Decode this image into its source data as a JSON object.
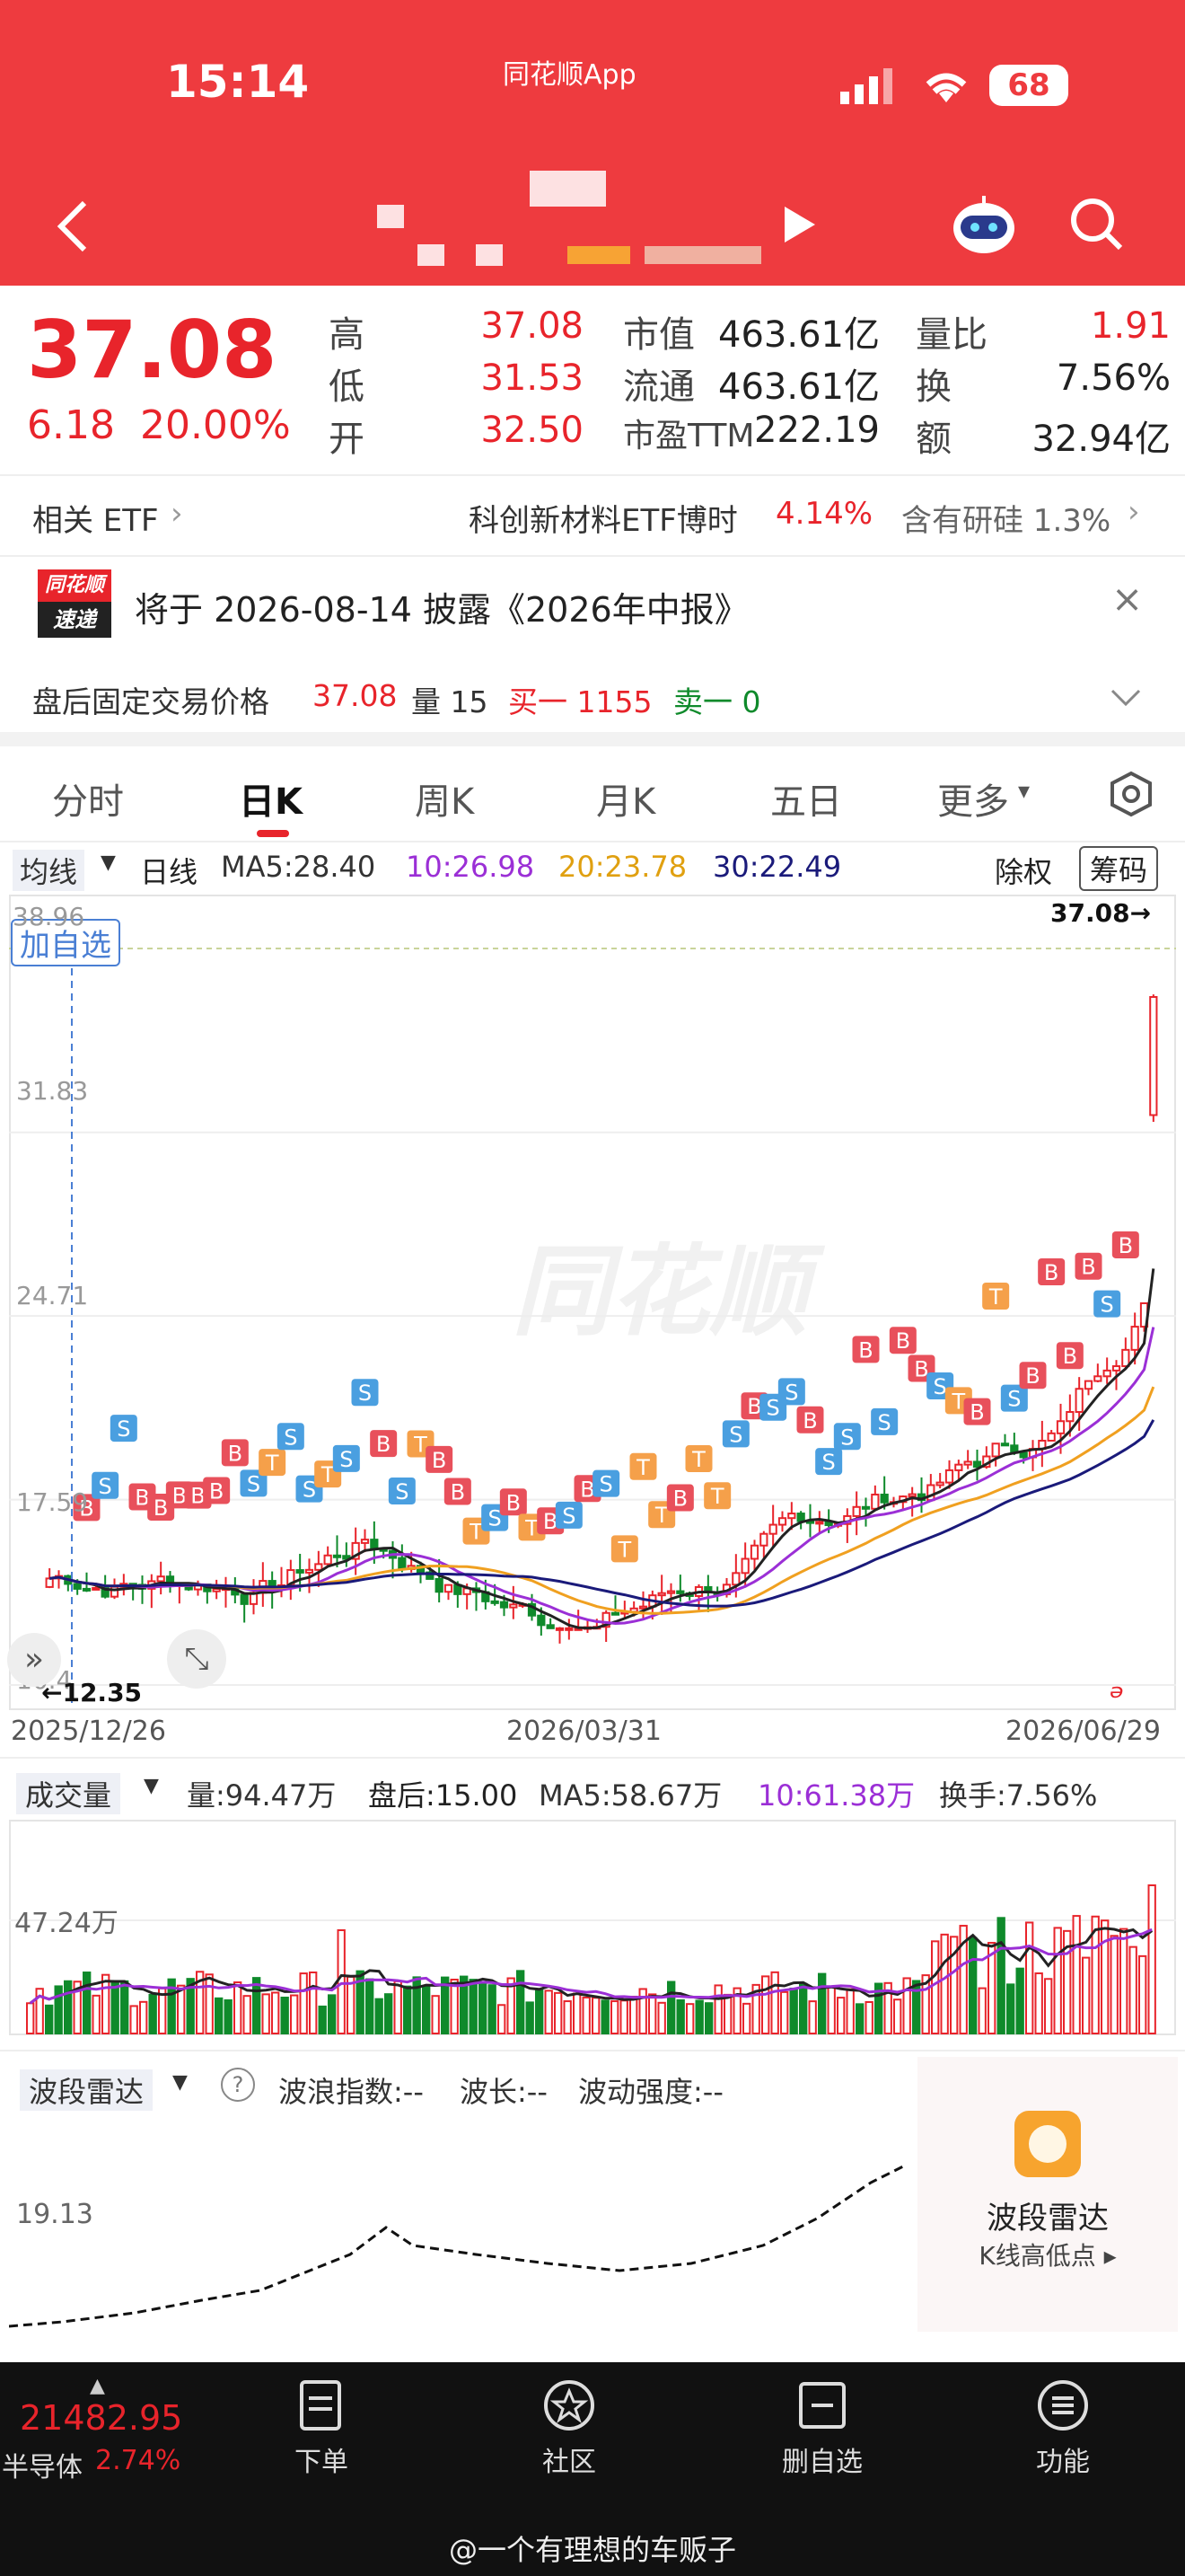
{
  "status_bar": {
    "time": "15:14",
    "app": "同花顺App",
    "battery": "68"
  },
  "stock": {
    "price": "37.08",
    "change": "6.18",
    "change_pct": "20.00%",
    "high_label": "高",
    "high": "37.08",
    "low_label": "低",
    "low": "31.53",
    "open_label": "开",
    "open": "32.50",
    "mktcap_label": "市值",
    "mktcap": "463.61亿",
    "float_label": "流通",
    "float": "463.61亿",
    "pe_label": "市盈TTM",
    "pe": "222.19",
    "volratio_label": "量比",
    "volratio": "1.91",
    "turnover_label": "换",
    "turnover": "7.56%",
    "amount_label": "额",
    "amount": "32.94亿"
  },
  "etf": {
    "label": "相关 ETF",
    "name": "科创新材料ETF博时",
    "pct": "4.14%",
    "hold": "含有研硅 1.3%"
  },
  "notice": {
    "logo_top": "同花顺",
    "logo_bottom": "速递",
    "text": "将于 2026-08-14 披露《2026年中报》"
  },
  "after_hours": {
    "label": "盘后固定交易价格",
    "price": "37.08",
    "vol_label": "量 15",
    "buy": "买一 1155",
    "sell": "卖一 0"
  },
  "tabs": [
    "分时",
    "日K",
    "周K",
    "月K",
    "五日",
    "更多"
  ],
  "active_tab": "日K",
  "kline": {
    "ma_selector": "均线",
    "period": "日线",
    "ma5": "MA5:28.40",
    "ma10": "10:26.98",
    "ma20": "20:23.78",
    "ma30": "30:22.49",
    "adjust": "除权",
    "chips": "筹码",
    "add_watch": "加自选",
    "y_labels": [
      "38.96",
      "31.83",
      "24.71",
      "17.59",
      "10.4"
    ],
    "high_marker": "37.08→",
    "low_marker": "←12.35",
    "x_labels": [
      "2025/12/26",
      "2026/03/31",
      "2026/06/29"
    ],
    "watermark": "同花顺",
    "colors": {
      "up": "#e8242b",
      "down": "#0f8a2b",
      "ma5": "#222222",
      "ma10": "#9b2fd6",
      "ma20": "#f0a020",
      "ma30": "#1a1a7a"
    }
  },
  "volume": {
    "selector": "成交量",
    "vol": "量:94.47万",
    "after": "盘后:15.00",
    "ma5": "MA5:58.67万",
    "ma10": "10:61.38万",
    "turn": "换手:7.56%",
    "y_label": "47.24万"
  },
  "wave": {
    "selector": "波段雷达",
    "index": "波浪指数:--",
    "len": "波长:--",
    "strength": "波动强度:--",
    "y_label": "19.13",
    "card_title": "波段雷达",
    "card_sub": "K线高低点"
  },
  "bottom": {
    "index_value": "21482.95",
    "index_name": "半导体",
    "index_pct": "2.74%",
    "items": [
      "下单",
      "社区",
      "删自选",
      "功能"
    ]
  },
  "footer": "@一个有理想的车贩子",
  "chart_data": {
    "type": "candlestick",
    "x_labels": [
      "2025/12/26",
      "2026/03/31",
      "2026/06/29"
    ],
    "y_ticks": [
      38.96,
      31.83,
      24.71,
      17.59,
      10.4
    ],
    "ylim": [
      10.4,
      38.96
    ],
    "last": {
      "open": 32.5,
      "high": 37.08,
      "low": 31.53,
      "close": 37.08
    },
    "period_low": 12.35,
    "period_high": 37.08
  }
}
